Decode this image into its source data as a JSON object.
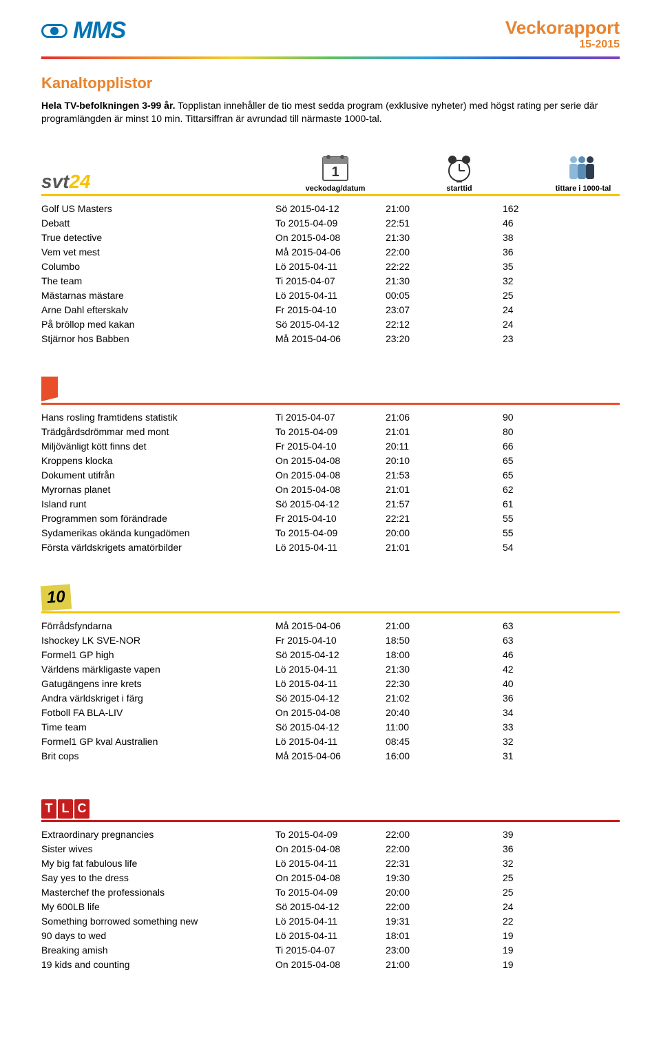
{
  "header": {
    "logo_text": "MMS",
    "title": "Veckorapport",
    "subtitle": "15-2015"
  },
  "colors": {
    "brand_blue": "#0073b3",
    "accent_orange": "#e8832e",
    "text": "#000000"
  },
  "section_title": "Kanaltopplistor",
  "intro_bold": "Hela TV-befolkningen 3-99 år.",
  "intro_text": " Topplistan innehåller de tio mest sedda program (exklusive nyheter) med högst rating per serie där programlängden är minst 10 min. Tittarsiffran är avrundad till närmaste 1000-tal.",
  "header_icons": {
    "date_label": "veckodag/datum",
    "time_label": "starttid",
    "viewers_label": "tittare i 1000-tal"
  },
  "channels": [
    {
      "id": "svt24",
      "divider_color": "#f7c300",
      "logo": {
        "kind": "svt24",
        "text1": "svt",
        "text2": "24",
        "color1": "#555555",
        "color2": "#f7c300"
      },
      "rows": [
        {
          "p": "Golf US Masters",
          "d": "Sö 2015-04-12",
          "t": "21:00",
          "v": "162"
        },
        {
          "p": "Debatt",
          "d": "To 2015-04-09",
          "t": "22:51",
          "v": "46"
        },
        {
          "p": "True detective",
          "d": "On 2015-04-08",
          "t": "21:30",
          "v": "38"
        },
        {
          "p": "Vem vet mest",
          "d": "Må 2015-04-06",
          "t": "22:00",
          "v": "36"
        },
        {
          "p": "Columbo",
          "d": "Lö 2015-04-11",
          "t": "22:22",
          "v": "35"
        },
        {
          "p": "The team",
          "d": "Ti 2015-04-07",
          "t": "21:30",
          "v": "32"
        },
        {
          "p": "Mästarnas mästare",
          "d": "Lö 2015-04-11",
          "t": "00:05",
          "v": "25"
        },
        {
          "p": "Arne Dahl efterskalv",
          "d": "Fr 2015-04-10",
          "t": "23:07",
          "v": "24"
        },
        {
          "p": "På bröllop med kakan",
          "d": "Sö 2015-04-12",
          "t": "22:12",
          "v": "24"
        },
        {
          "p": "Stjärnor hos Babben",
          "d": "Må 2015-04-06",
          "t": "23:20",
          "v": "23"
        }
      ]
    },
    {
      "id": "kunskap",
      "divider_color": "#e84e2a",
      "logo": {
        "kind": "flag",
        "color": "#e84e2a"
      },
      "rows": [
        {
          "p": "Hans rosling framtidens statistik",
          "d": "Ti 2015-04-07",
          "t": "21:06",
          "v": "90"
        },
        {
          "p": "Trädgårdsdrömmar med mont",
          "d": "To 2015-04-09",
          "t": "21:01",
          "v": "80"
        },
        {
          "p": "Miljövänligt kött finns det",
          "d": "Fr 2015-04-10",
          "t": "20:11",
          "v": "66"
        },
        {
          "p": "Kroppens klocka",
          "d": "On 2015-04-08",
          "t": "20:10",
          "v": "65"
        },
        {
          "p": "Dokument utifrån",
          "d": "On 2015-04-08",
          "t": "21:53",
          "v": "65"
        },
        {
          "p": "Myrornas planet",
          "d": "On 2015-04-08",
          "t": "21:01",
          "v": "62"
        },
        {
          "p": "Island runt",
          "d": "Sö 2015-04-12",
          "t": "21:57",
          "v": "61"
        },
        {
          "p": "Programmen som förändrade",
          "d": "Fr 2015-04-10",
          "t": "22:21",
          "v": "55"
        },
        {
          "p": "Sydamerikas okända kungadömen",
          "d": "To 2015-04-09",
          "t": "20:00",
          "v": "55"
        },
        {
          "p": "Första världskrigets amatörbilder",
          "d": "Lö 2015-04-11",
          "t": "21:01",
          "v": "54"
        }
      ]
    },
    {
      "id": "tv10",
      "divider_color": "#f7c300",
      "logo": {
        "kind": "tv10",
        "text": "10",
        "bg": "#e0cd48",
        "fg": "#000000"
      },
      "rows": [
        {
          "p": "Förrådsfyndarna",
          "d": "Må 2015-04-06",
          "t": "21:00",
          "v": "63"
        },
        {
          "p": "Ishockey LK SVE-NOR",
          "d": "Fr 2015-04-10",
          "t": "18:50",
          "v": "63"
        },
        {
          "p": "Formel1 GP high",
          "d": "Sö 2015-04-12",
          "t": "18:00",
          "v": "46"
        },
        {
          "p": "Världens märkligaste vapen",
          "d": "Lö 2015-04-11",
          "t": "21:30",
          "v": "42"
        },
        {
          "p": "Gatugängens inre krets",
          "d": "Lö 2015-04-11",
          "t": "22:30",
          "v": "40"
        },
        {
          "p": "Andra världskriget i färg",
          "d": "Sö 2015-04-12",
          "t": "21:02",
          "v": "36"
        },
        {
          "p": "Fotboll FA BLA-LIV",
          "d": "On 2015-04-08",
          "t": "20:40",
          "v": "34"
        },
        {
          "p": "Time team",
          "d": "Sö 2015-04-12",
          "t": "11:00",
          "v": "33"
        },
        {
          "p": "Formel1 GP kval Australien",
          "d": "Lö 2015-04-11",
          "t": "08:45",
          "v": "32"
        },
        {
          "p": "Brit cops",
          "d": "Må 2015-04-06",
          "t": "16:00",
          "v": "31"
        }
      ]
    },
    {
      "id": "tlc",
      "divider_color": "#c41e1e",
      "logo": {
        "kind": "tlc",
        "text": "TLC",
        "bg": "#c41e1e",
        "fg": "#ffffff"
      },
      "rows": [
        {
          "p": "Extraordinary pregnancies",
          "d": "To 2015-04-09",
          "t": "22:00",
          "v": "39"
        },
        {
          "p": "Sister wives",
          "d": "On 2015-04-08",
          "t": "22:00",
          "v": "36"
        },
        {
          "p": "My big fat fabulous life",
          "d": "Lö 2015-04-11",
          "t": "22:31",
          "v": "32"
        },
        {
          "p": "Say yes to the dress",
          "d": "On 2015-04-08",
          "t": "19:30",
          "v": "25"
        },
        {
          "p": "Masterchef the professionals",
          "d": "To 2015-04-09",
          "t": "20:00",
          "v": "25"
        },
        {
          "p": "My 600LB life",
          "d": "Sö 2015-04-12",
          "t": "22:00",
          "v": "24"
        },
        {
          "p": "Something borrowed something new",
          "d": "Lö 2015-04-11",
          "t": "19:31",
          "v": "22"
        },
        {
          "p": "90 days to wed",
          "d": "Lö 2015-04-11",
          "t": "18:01",
          "v": "19"
        },
        {
          "p": "Breaking amish",
          "d": "Ti 2015-04-07",
          "t": "23:00",
          "v": "19"
        },
        {
          "p": "19 kids and counting",
          "d": "On 2015-04-08",
          "t": "21:00",
          "v": "19"
        }
      ]
    }
  ]
}
